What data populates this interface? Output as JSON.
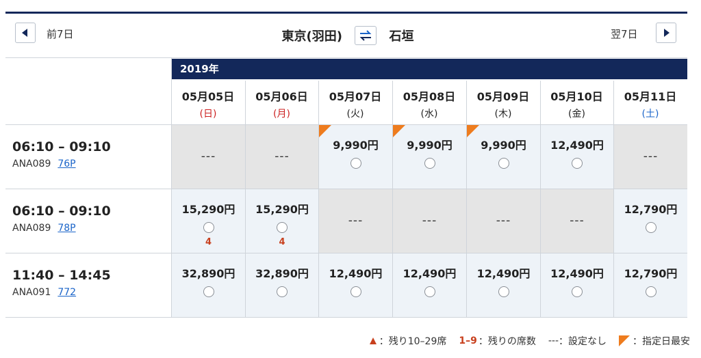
{
  "nav": {
    "prev_label": "前7日",
    "next_label": "翌7日"
  },
  "route": {
    "from": "東京(羽田)",
    "to": "石垣"
  },
  "year": "2019年",
  "dates": [
    {
      "date": "05月05日",
      "weekday": "(日)",
      "color": "#cc1f1f"
    },
    {
      "date": "05月06日",
      "weekday": "(月)",
      "color": "#cc1f1f"
    },
    {
      "date": "05月07日",
      "weekday": "(火)",
      "color": "#222222"
    },
    {
      "date": "05月08日",
      "weekday": "(水)",
      "color": "#222222"
    },
    {
      "date": "05月09日",
      "weekday": "(木)",
      "color": "#222222"
    },
    {
      "date": "05月10日",
      "weekday": "(金)",
      "color": "#222222"
    },
    {
      "date": "05月11日",
      "weekday": "(土)",
      "color": "#1a64c9"
    }
  ],
  "flights": [
    {
      "time": "06:10 – 09:10",
      "number": "ANA089",
      "aircraft": "76P",
      "cells": [
        {
          "price": null,
          "dash": "---"
        },
        {
          "price": null,
          "dash": "---"
        },
        {
          "price": "9,990円",
          "cheapest": true
        },
        {
          "price": "9,990円",
          "cheapest": true
        },
        {
          "price": "9,990円",
          "cheapest": true
        },
        {
          "price": "12,490円"
        },
        {
          "price": null,
          "dash": "---"
        }
      ]
    },
    {
      "time": "06:10 – 09:10",
      "number": "ANA089",
      "aircraft": "78P",
      "cells": [
        {
          "price": "15,290円",
          "seats": "4"
        },
        {
          "price": "15,290円",
          "seats": "4"
        },
        {
          "price": null,
          "dash": "---"
        },
        {
          "price": null,
          "dash": "---"
        },
        {
          "price": null,
          "dash": "---"
        },
        {
          "price": null,
          "dash": "---"
        },
        {
          "price": "12,790円"
        }
      ]
    },
    {
      "time": "11:40 – 14:45",
      "number": "ANA091",
      "aircraft": "772",
      "cells": [
        {
          "price": "32,890円"
        },
        {
          "price": "32,890円"
        },
        {
          "price": "12,490円"
        },
        {
          "price": "12,490円"
        },
        {
          "price": "12,490円"
        },
        {
          "price": "12,490円"
        },
        {
          "price": "12,790円"
        }
      ]
    }
  ],
  "legend": {
    "few_seats": "：残り10–29席",
    "seat_range": "1–9",
    "seat_range_text": "：残りの席数",
    "dash": "---",
    "dash_text": "：設定なし",
    "cheapest_text": "：指定日最安"
  },
  "colors": {
    "navy": "#13285a",
    "orange": "#ee7c1e",
    "red": "#c8401e",
    "link": "#1a64c9"
  }
}
